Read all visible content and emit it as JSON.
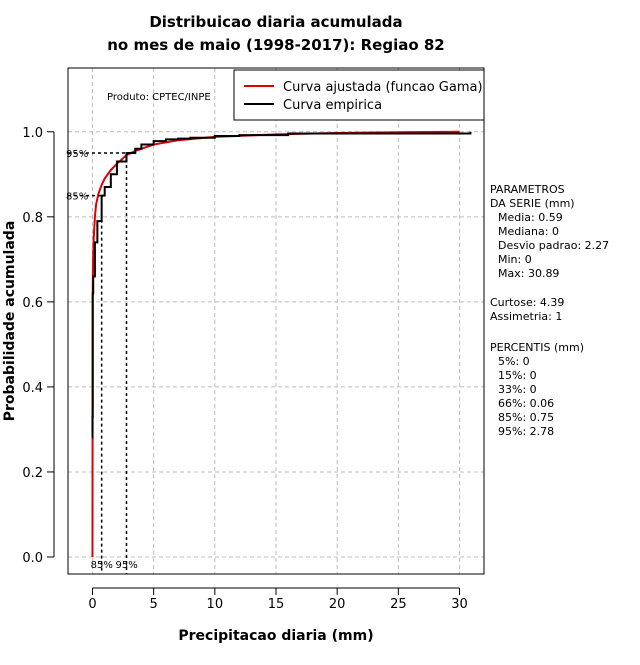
{
  "chart_data": {
    "type": "line",
    "title": [
      "Distribuicao diaria acumulada",
      "no mes de maio (1998-2017): Regiao 82"
    ],
    "xlabel": "Precipitacao diaria (mm)",
    "ylabel": "Probabilidade acumulada",
    "xlim": [
      -2,
      32
    ],
    "ylim": [
      -0.04,
      1.15
    ],
    "xticks": [
      "0",
      "5",
      "10",
      "15",
      "20",
      "25",
      "30"
    ],
    "yticks": [
      "0.0",
      "0.2",
      "0.4",
      "0.6",
      "0.8",
      "1.0"
    ],
    "grid": true,
    "product_label": "Produto: CPTEC/INPE",
    "legend": {
      "position": "top-right",
      "entries": [
        {
          "name": "Curva ajustada (funcao Gama)",
          "color": "#e00000"
        },
        {
          "name": "Curva empirica",
          "color": "#000000"
        }
      ]
    },
    "series": [
      {
        "name": "Curva ajustada (funcao Gama)",
        "color": "#e00000",
        "x": [
          0,
          0.02,
          0.05,
          0.1,
          0.2,
          0.3,
          0.5,
          0.75,
          1.0,
          1.5,
          2.0,
          2.78,
          3.5,
          5,
          7,
          10,
          15,
          20,
          25,
          30
        ],
        "y": [
          0,
          0.62,
          0.7,
          0.75,
          0.8,
          0.83,
          0.855,
          0.875,
          0.89,
          0.91,
          0.925,
          0.945,
          0.955,
          0.97,
          0.98,
          0.988,
          0.994,
          0.997,
          0.999,
          1.0
        ]
      },
      {
        "name": "Curva empirica",
        "color": "#000000",
        "x": [
          0,
          0.001,
          0.02,
          0.06,
          0.2,
          0.4,
          0.75,
          1.0,
          1.5,
          2.0,
          2.78,
          3.5,
          4.0,
          5.0,
          6.0,
          7.0,
          8.0,
          10.0,
          12.0,
          16.0,
          30.89
        ],
        "y": [
          0.28,
          0.33,
          0.62,
          0.66,
          0.74,
          0.79,
          0.85,
          0.87,
          0.9,
          0.93,
          0.95,
          0.96,
          0.97,
          0.978,
          0.982,
          0.984,
          0.986,
          0.99,
          0.992,
          0.996,
          1.0
        ]
      }
    ],
    "percentile_markers": [
      {
        "label": "85%",
        "x": 0.75,
        "y": 0.85
      },
      {
        "label": "95%",
        "x": 2.78,
        "y": 0.95
      }
    ]
  },
  "side_panel": {
    "param_title_1": "PARAMETROS",
    "param_title_2": "DA SERIE (mm)",
    "media": "Media: 0.59",
    "mediana": "Mediana: 0",
    "desvio": "Desvio padrao: 2.27",
    "min": "Min: 0",
    "max": "Max: 30.89",
    "curtose": "Curtose: 4.39",
    "assimetria": "Assimetria: 1",
    "perc_title": "PERCENTIS (mm)",
    "p5": "5%: 0",
    "p15": "15%: 0",
    "p33": "33%: 0",
    "p66": "66%: 0.06",
    "p85": "85%: 0.75",
    "p95": "95%: 2.78"
  }
}
